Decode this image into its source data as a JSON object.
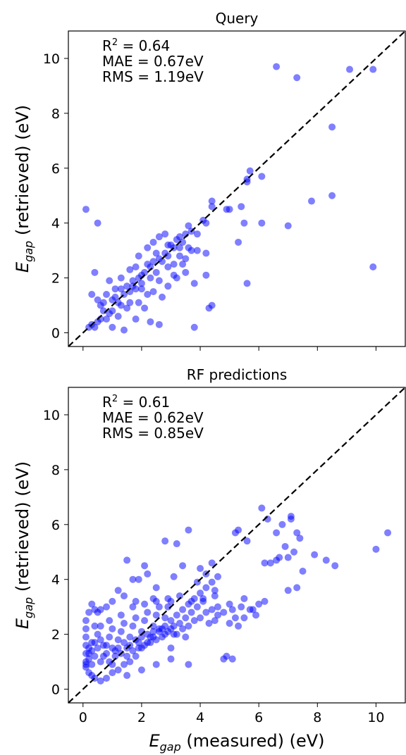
{
  "chart_data": [
    {
      "type": "scatter",
      "title": "Query",
      "xlabel": "",
      "ylabel": "E_gap (retrieved) (eV)",
      "xlim": [
        -0.5,
        11
      ],
      "ylim": [
        -0.5,
        11
      ],
      "xticks": [
        "0",
        "2",
        "4",
        "6",
        "8",
        "10"
      ],
      "yticks": [
        "0",
        "2",
        "4",
        "6",
        "8",
        "10"
      ],
      "show_xtick_labels": false,
      "stats": [
        {
          "prefix": "R",
          "sup": "2",
          "rest": " = 0.64"
        },
        {
          "text": "MAE = 0.67eV"
        },
        {
          "text": "RMS = 1.19eV"
        }
      ],
      "reference_line": "y = x",
      "color": "#0000ff",
      "points": [
        [
          0.1,
          4.5
        ],
        [
          0.5,
          4.0
        ],
        [
          6.6,
          9.7
        ],
        [
          7.3,
          9.3
        ],
        [
          9.1,
          9.6
        ],
        [
          9.9,
          9.6
        ],
        [
          8.5,
          7.5
        ],
        [
          8.5,
          5.0
        ],
        [
          7.8,
          4.8
        ],
        [
          7.0,
          3.9
        ],
        [
          9.9,
          2.4
        ],
        [
          6.1,
          5.7
        ],
        [
          6.1,
          4.0
        ],
        [
          5.7,
          5.9
        ],
        [
          5.6,
          5.5
        ],
        [
          5.6,
          5.6
        ],
        [
          5.4,
          4.6
        ],
        [
          5.5,
          4.0
        ],
        [
          5.3,
          3.3
        ],
        [
          5.6,
          1.8
        ],
        [
          4.9,
          4.5
        ],
        [
          5.0,
          4.5
        ],
        [
          4.4,
          4.8
        ],
        [
          4.4,
          4.6
        ],
        [
          4.1,
          4.1
        ],
        [
          4.2,
          4.0
        ],
        [
          3.8,
          1.8
        ],
        [
          3.8,
          0.2
        ],
        [
          4.4,
          1.0
        ],
        [
          4.3,
          0.9
        ],
        [
          4.2,
          2.1
        ],
        [
          3.9,
          3.0
        ],
        [
          4.2,
          2.9
        ],
        [
          3.7,
          3.0
        ],
        [
          3.6,
          3.1
        ],
        [
          3.5,
          2.7
        ],
        [
          3.3,
          3.1
        ],
        [
          3.1,
          2.5
        ],
        [
          2.9,
          2.4
        ],
        [
          3.2,
          2.0
        ],
        [
          2.6,
          0.3
        ],
        [
          2.3,
          0.4
        ],
        [
          2.2,
          1.4
        ],
        [
          2.1,
          0.9
        ],
        [
          1.9,
          1.1
        ],
        [
          1.8,
          0.5
        ],
        [
          1.4,
          0.1
        ],
        [
          1.0,
          0.2
        ],
        [
          1.2,
          0.6
        ],
        [
          0.8,
          0.5
        ],
        [
          0.4,
          2.2
        ],
        [
          0.3,
          1.4
        ],
        [
          0.5,
          1.2
        ],
        [
          0.6,
          1.0
        ],
        [
          0.3,
          0.3
        ],
        [
          0.2,
          0.2
        ],
        [
          0.4,
          0.2
        ],
        [
          0.6,
          0.5
        ],
        [
          0.7,
          1.1
        ],
        [
          0.8,
          1.4
        ],
        [
          1.0,
          1.2
        ],
        [
          1.1,
          1.6
        ],
        [
          1.3,
          1.6
        ],
        [
          1.4,
          1.4
        ],
        [
          1.5,
          1.7
        ],
        [
          1.6,
          1.5
        ],
        [
          1.7,
          1.9
        ],
        [
          1.8,
          1.6
        ],
        [
          1.9,
          2.0
        ],
        [
          2.0,
          2.1
        ],
        [
          2.1,
          2.2
        ],
        [
          2.2,
          2.5
        ],
        [
          2.3,
          2.0
        ],
        [
          2.4,
          2.6
        ],
        [
          2.5,
          2.2
        ],
        [
          2.6,
          2.7
        ],
        [
          2.7,
          2.6
        ],
        [
          2.8,
          2.9
        ],
        [
          2.9,
          2.8
        ],
        [
          3.0,
          3.2
        ],
        [
          3.1,
          3.1
        ],
        [
          3.2,
          3.4
        ],
        [
          3.3,
          3.5
        ],
        [
          3.4,
          3.3
        ],
        [
          3.5,
          3.6
        ],
        [
          3.6,
          3.9
        ],
        [
          3.7,
          3.7
        ],
        [
          3.9,
          3.6
        ],
        [
          2.4,
          3.3
        ],
        [
          2.6,
          3.5
        ],
        [
          2.8,
          3.6
        ],
        [
          2.9,
          3.2
        ],
        [
          1.9,
          2.8
        ],
        [
          2.2,
          3.1
        ],
        [
          1.6,
          2.3
        ],
        [
          1.3,
          2.0
        ],
        [
          1.2,
          1.1
        ],
        [
          1.5,
          0.9
        ],
        [
          1.6,
          1.1
        ],
        [
          1.0,
          0.8
        ],
        [
          0.9,
          1.9
        ],
        [
          1.1,
          1.3
        ],
        [
          0.7,
          0.8
        ],
        [
          0.5,
          0.4
        ],
        [
          0.9,
          0.7
        ],
        [
          1.3,
          1.0
        ],
        [
          2.0,
          1.8
        ],
        [
          2.3,
          2.4
        ],
        [
          2.6,
          1.9
        ],
        [
          2.9,
          1.7
        ],
        [
          3.1,
          2.1
        ],
        [
          3.4,
          2.5
        ],
        [
          3.5,
          2.2
        ],
        [
          2.7,
          1.3
        ],
        [
          2.4,
          1.5
        ],
        [
          2.0,
          1.6
        ],
        [
          1.8,
          2.4
        ],
        [
          1.7,
          1.7
        ],
        [
          2.5,
          2.9
        ],
        [
          3.3,
          2.8
        ]
      ]
    },
    {
      "type": "scatter",
      "title": "RF predictions",
      "xlabel": "E_gap (measured) (eV)",
      "ylabel": "E_gap (retrieved) (eV)",
      "xlim": [
        -0.5,
        11
      ],
      "ylim": [
        -0.5,
        11
      ],
      "xticks": [
        "0",
        "2",
        "4",
        "6",
        "8",
        "10"
      ],
      "yticks": [
        "0",
        "2",
        "4",
        "6",
        "8",
        "10"
      ],
      "show_xtick_labels": true,
      "stats": [
        {
          "prefix": "R",
          "sup": "2",
          "rest": " = 0.61"
        },
        {
          "text": "MAE = 0.62eV"
        },
        {
          "text": "RMS = 0.85eV"
        }
      ],
      "reference_line": "y = x",
      "color": "#0000ff",
      "points": [
        [
          10.4,
          5.7
        ],
        [
          10.0,
          5.1
        ],
        [
          8.6,
          4.5
        ],
        [
          8.3,
          4.7
        ],
        [
          7.9,
          4.9
        ],
        [
          7.5,
          4.3
        ],
        [
          7.2,
          5.0
        ],
        [
          7.0,
          4.8
        ],
        [
          7.1,
          6.3
        ],
        [
          7.1,
          6.2
        ],
        [
          6.8,
          6.0
        ],
        [
          6.6,
          5.7
        ],
        [
          7.3,
          5.7
        ],
        [
          7.4,
          5.5
        ],
        [
          7.3,
          3.7
        ],
        [
          7.0,
          3.6
        ],
        [
          6.9,
          5.2
        ],
        [
          6.7,
          4.8
        ],
        [
          6.6,
          4.7
        ],
        [
          6.4,
          4.6
        ],
        [
          6.2,
          4.6
        ],
        [
          6.1,
          6.6
        ],
        [
          6.3,
          6.2
        ],
        [
          6.2,
          3.2
        ],
        [
          6.0,
          3.1
        ],
        [
          5.9,
          2.7
        ],
        [
          5.6,
          5.4
        ],
        [
          5.7,
          2.9
        ],
        [
          5.5,
          2.6
        ],
        [
          5.4,
          3.0
        ],
        [
          5.3,
          5.8
        ],
        [
          5.2,
          5.7
        ],
        [
          5.3,
          2.3
        ],
        [
          5.1,
          2.9
        ],
        [
          5.0,
          2.4
        ],
        [
          4.9,
          1.2
        ],
        [
          4.8,
          1.1
        ],
        [
          5.1,
          1.1
        ],
        [
          4.6,
          3.0
        ],
        [
          4.5,
          3.6
        ],
        [
          4.4,
          4.6
        ],
        [
          4.2,
          4.2
        ],
        [
          4.0,
          4.4
        ],
        [
          3.9,
          3.9
        ],
        [
          3.6,
          5.8
        ],
        [
          3.5,
          1.9
        ],
        [
          3.6,
          0.9
        ],
        [
          3.4,
          4.5
        ],
        [
          3.2,
          5.3
        ],
        [
          3.1,
          4.1
        ],
        [
          3.0,
          1.5
        ],
        [
          2.8,
          5.4
        ],
        [
          2.5,
          3.7
        ],
        [
          2.4,
          3.3
        ],
        [
          2.2,
          4.2
        ],
        [
          2.1,
          4.5
        ],
        [
          1.9,
          4.0
        ],
        [
          1.8,
          3.2
        ],
        [
          1.5,
          4.7
        ],
        [
          1.7,
          4.0
        ],
        [
          1.4,
          3.4
        ],
        [
          1.2,
          3.6
        ],
        [
          1.0,
          3.2
        ],
        [
          0.8,
          3.0
        ],
        [
          0.6,
          2.9
        ],
        [
          0.5,
          2.8
        ],
        [
          0.4,
          2.9
        ],
        [
          0.3,
          3.1
        ],
        [
          0.2,
          2.8
        ],
        [
          0.1,
          2.5
        ],
        [
          0.1,
          2.2
        ],
        [
          0.1,
          1.9
        ],
        [
          0.1,
          1.6
        ],
        [
          0.1,
          1.3
        ],
        [
          0.1,
          1.0
        ],
        [
          0.1,
          0.8
        ],
        [
          0.2,
          0.6
        ],
        [
          0.3,
          0.5
        ],
        [
          0.4,
          0.4
        ],
        [
          0.6,
          0.3
        ],
        [
          0.8,
          0.4
        ],
        [
          1.0,
          0.6
        ],
        [
          1.2,
          0.7
        ],
        [
          1.4,
          0.9
        ],
        [
          1.6,
          1.0
        ],
        [
          1.8,
          1.2
        ],
        [
          2.0,
          1.5
        ],
        [
          2.2,
          1.7
        ],
        [
          2.4,
          1.9
        ],
        [
          2.6,
          2.1
        ],
        [
          2.8,
          2.3
        ],
        [
          3.0,
          2.5
        ],
        [
          3.2,
          2.7
        ],
        [
          3.4,
          2.9
        ],
        [
          3.6,
          3.1
        ],
        [
          3.8,
          3.3
        ],
        [
          4.0,
          3.5
        ],
        [
          4.2,
          3.7
        ],
        [
          4.4,
          3.9
        ],
        [
          4.6,
          4.1
        ],
        [
          0.2,
          1.1
        ],
        [
          0.3,
          1.4
        ],
        [
          0.4,
          1.7
        ],
        [
          0.5,
          2.0
        ],
        [
          0.6,
          2.3
        ],
        [
          0.7,
          1.2
        ],
        [
          0.8,
          1.6
        ],
        [
          0.9,
          1.9
        ],
        [
          1.0,
          2.2
        ],
        [
          1.1,
          1.4
        ],
        [
          1.2,
          1.8
        ],
        [
          1.3,
          2.1
        ],
        [
          1.4,
          2.4
        ],
        [
          1.5,
          1.5
        ],
        [
          1.6,
          1.9
        ],
        [
          1.7,
          2.3
        ],
        [
          1.8,
          2.6
        ],
        [
          1.9,
          1.7
        ],
        [
          2.0,
          2.1
        ],
        [
          2.1,
          2.5
        ],
        [
          2.2,
          2.8
        ],
        [
          2.3,
          1.9
        ],
        [
          2.4,
          2.3
        ],
        [
          2.5,
          2.7
        ],
        [
          2.6,
          3.0
        ],
        [
          2.7,
          2.2
        ],
        [
          2.8,
          2.6
        ],
        [
          2.9,
          3.0
        ],
        [
          3.0,
          3.2
        ],
        [
          3.1,
          2.3
        ],
        [
          3.2,
          2.0
        ],
        [
          3.3,
          2.4
        ],
        [
          3.4,
          2.2
        ],
        [
          3.5,
          2.6
        ],
        [
          3.6,
          2.3
        ],
        [
          3.7,
          2.8
        ],
        [
          3.8,
          2.5
        ],
        [
          3.9,
          3.0
        ],
        [
          4.0,
          2.6
        ],
        [
          4.1,
          3.2
        ],
        [
          4.2,
          2.8
        ],
        [
          4.3,
          2.4
        ],
        [
          4.4,
          2.9
        ],
        [
          4.5,
          2.5
        ],
        [
          4.6,
          2.7
        ],
        [
          4.8,
          2.8
        ],
        [
          5.0,
          3.1
        ],
        [
          5.2,
          2.6
        ],
        [
          5.5,
          3.3
        ],
        [
          5.8,
          2.9
        ],
        [
          0.2,
          1.5
        ],
        [
          0.3,
          0.9
        ],
        [
          0.4,
          1.2
        ],
        [
          0.5,
          1.5
        ],
        [
          0.6,
          1.0
        ],
        [
          0.7,
          1.6
        ],
        [
          0.8,
          1.3
        ],
        [
          0.9,
          1.0
        ],
        [
          1.0,
          1.5
        ],
        [
          1.1,
          1.2
        ],
        [
          1.2,
          1.5
        ],
        [
          1.3,
          1.3
        ],
        [
          1.4,
          1.7
        ],
        [
          1.5,
          1.2
        ],
        [
          1.6,
          1.6
        ],
        [
          1.7,
          1.4
        ],
        [
          1.8,
          1.8
        ],
        [
          1.9,
          1.5
        ],
        [
          2.0,
          1.9
        ],
        [
          2.1,
          1.6
        ],
        [
          2.2,
          2.0
        ],
        [
          2.3,
          1.7
        ],
        [
          2.4,
          2.1
        ],
        [
          2.5,
          1.8
        ],
        [
          2.6,
          2.2
        ],
        [
          2.7,
          1.9
        ],
        [
          2.8,
          2.0
        ],
        [
          2.9,
          2.1
        ],
        [
          3.0,
          2.2
        ],
        [
          3.1,
          2.0
        ],
        [
          0.1,
          0.9
        ],
        [
          0.2,
          1.3
        ],
        [
          0.3,
          1.7
        ],
        [
          0.4,
          2.3
        ],
        [
          0.6,
          1.8
        ],
        [
          0.9,
          2.5
        ],
        [
          1.3,
          2.7
        ],
        [
          1.7,
          3.0
        ],
        [
          2.1,
          3.1
        ],
        [
          2.5,
          3.2
        ],
        [
          2.9,
          3.3
        ],
        [
          3.3,
          3.4
        ],
        [
          3.7,
          3.2
        ],
        [
          4.1,
          3.3
        ],
        [
          4.5,
          3.4
        ],
        [
          1.0,
          0.9
        ],
        [
          1.5,
          0.5
        ],
        [
          2.0,
          0.7
        ],
        [
          2.5,
          0.9
        ],
        [
          3.0,
          1.1
        ]
      ]
    }
  ]
}
